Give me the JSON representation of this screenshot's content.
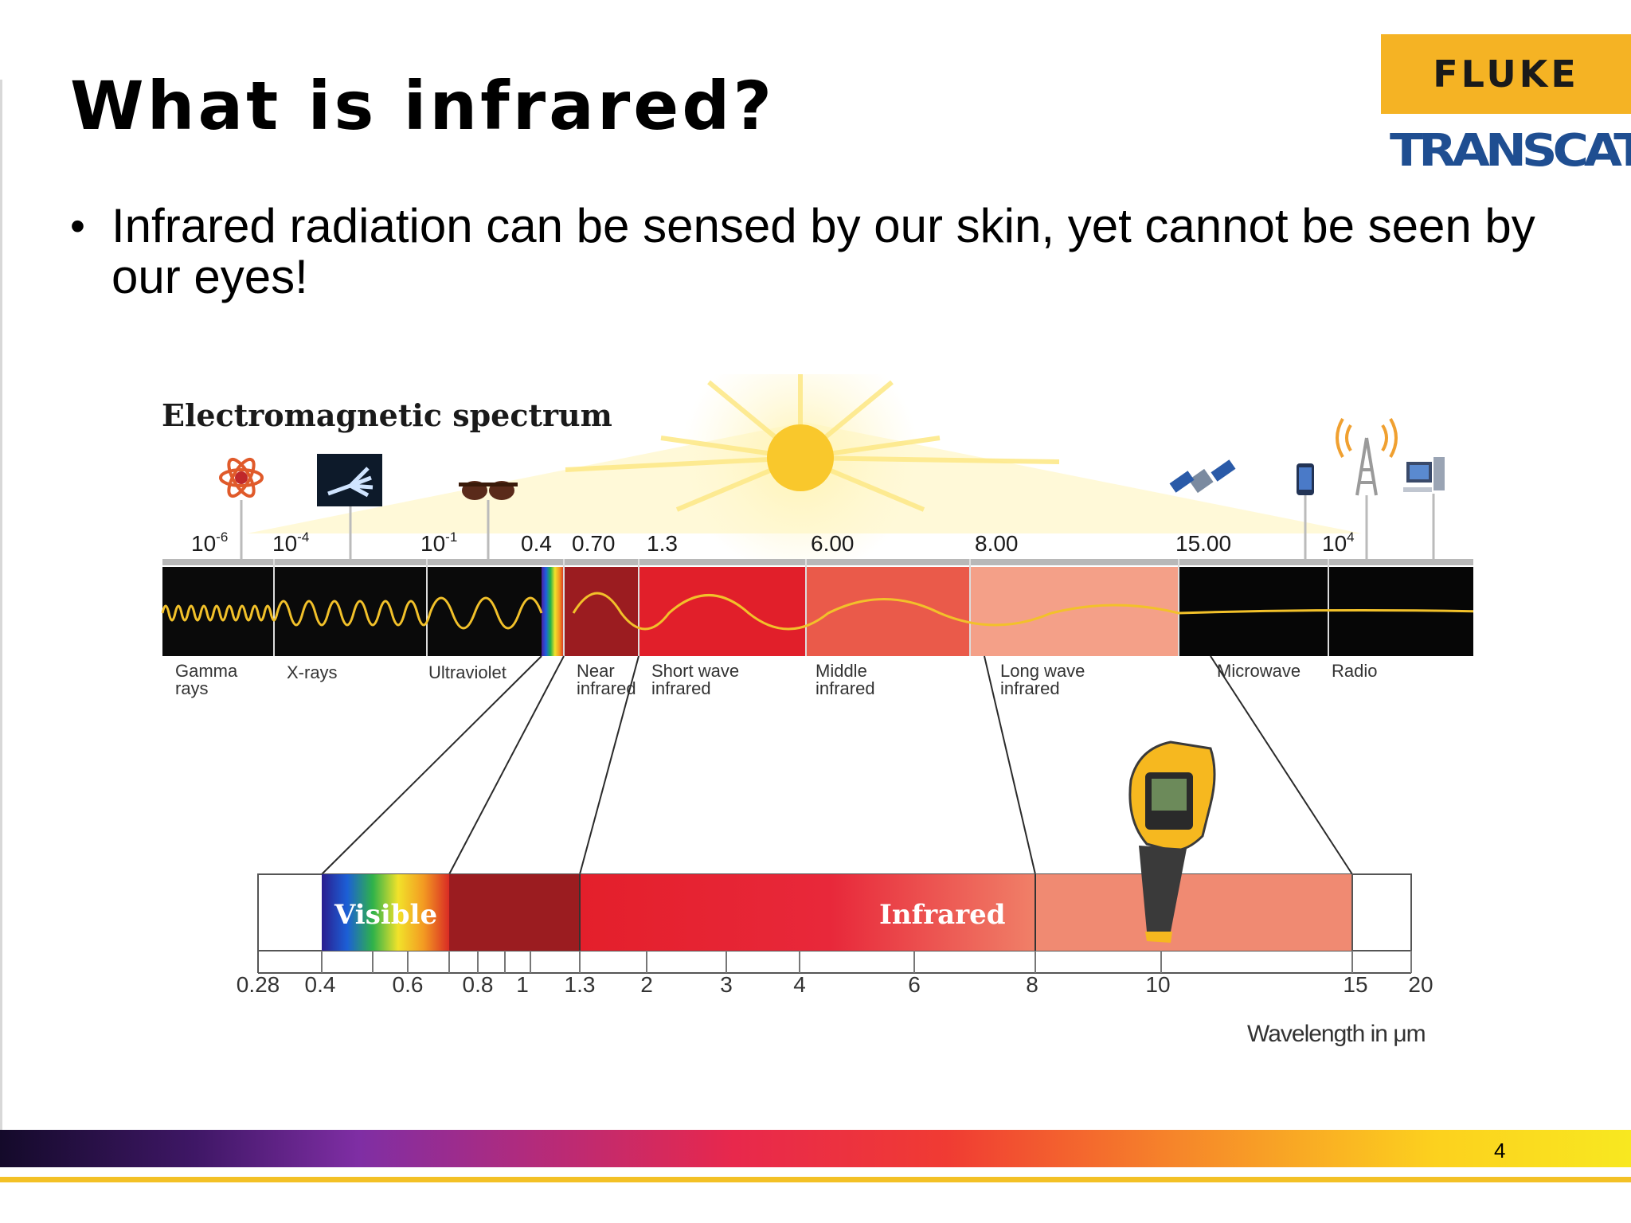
{
  "slide": {
    "title": "What is infrared?",
    "bullet": "Infrared radiation can be sensed by our skin, yet cannot be seen by our eyes!",
    "bullet_marker": "•",
    "page_number": "4"
  },
  "logos": {
    "fluke": "FLUKE",
    "transcat": "TRANSCAT"
  },
  "diagram": {
    "title": "Electromagnetic spectrum",
    "top_scale": {
      "g1_base": "10",
      "g1_exp": "-6",
      "g2_base": "10",
      "g2_exp": "-4",
      "g3_base": "10",
      "g3_exp": "-1",
      "v04": "0.4",
      "v070": "0.70",
      "v13": "1.3",
      "v600": "6.00",
      "v800": "8.00",
      "v1500": "15.00",
      "g4_base": "10",
      "g4_exp": "4"
    },
    "bands": {
      "gamma_1": "Gamma",
      "gamma_2": "rays",
      "xrays": "X-rays",
      "uv": "Ultraviolet",
      "nir_1": "Near",
      "nir_2": "infrared",
      "swir_1": "Short wave",
      "swir_2": "infrared",
      "mwir_1": "Middle",
      "mwir_2": "infrared",
      "lwir_1": "Long wave",
      "lwir_2": "infrared",
      "microwave": "Microwave",
      "radio": "Radio"
    },
    "bottom_bar": {
      "visible": "Visible",
      "infrared": "Infrared"
    },
    "bottom_ticks": [
      "0.28",
      "0.4",
      "0.6",
      "0.8",
      "1",
      "1.3",
      "2",
      "3",
      "4",
      "6",
      "8",
      "10",
      "15",
      "20"
    ],
    "axis_label": "Wavelength in μm"
  }
}
